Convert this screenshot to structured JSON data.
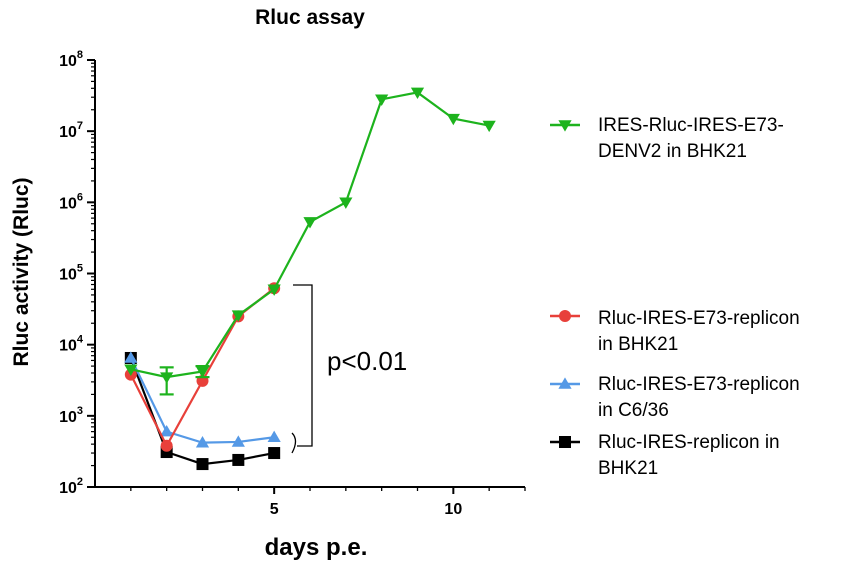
{
  "chart_data": {
    "type": "line",
    "title": "Rluc assay",
    "xlabel": "days p.e.",
    "ylabel": "Rluc activity (Rluc)",
    "yscale": "log",
    "xlim": [
      0,
      12
    ],
    "ylim": [
      100,
      100000000
    ],
    "xticks": [
      5,
      10
    ],
    "xtick_labels": [
      "5",
      "10"
    ],
    "yticks": [
      {
        "base": "10",
        "exp": "2",
        "value": 100
      },
      {
        "base": "10",
        "exp": "3",
        "value": 1000
      },
      {
        "base": "10",
        "exp": "4",
        "value": 10000
      },
      {
        "base": "10",
        "exp": "5",
        "value": 100000
      },
      {
        "base": "10",
        "exp": "6",
        "value": 1000000
      },
      {
        "base": "10",
        "exp": "7",
        "value": 10000000
      },
      {
        "base": "10",
        "exp": "8",
        "value": 100000000
      }
    ],
    "grid": false,
    "legend_position": "right",
    "series": [
      {
        "name_lines": [
          "IRES-Rluc-IRES-E73-",
          "DENV2 in BHK21"
        ],
        "color": "#1db31d",
        "marker": "triangle-down",
        "x": [
          1,
          2,
          3,
          4,
          5,
          6,
          7,
          8,
          9,
          10,
          11
        ],
        "y": [
          4500,
          3500,
          4200,
          26000,
          60000,
          530000,
          1000000,
          28000000,
          35000000,
          15000000,
          12000000
        ],
        "error_low": [
          null,
          2000,
          3500,
          null,
          null,
          null,
          null,
          null,
          null,
          null,
          null
        ],
        "error_high": [
          null,
          4800,
          5000,
          null,
          null,
          null,
          null,
          null,
          null,
          null,
          null
        ]
      },
      {
        "name_lines": [
          "Rluc-IRES-E73-replicon",
          " in BHK21"
        ],
        "color": "#e8403a",
        "marker": "circle",
        "x": [
          1,
          2,
          3,
          4,
          5
        ],
        "y": [
          3800,
          380,
          3100,
          25000,
          62000
        ]
      },
      {
        "name_lines": [
          "Rluc-IRES-E73-replicon",
          " in C6/36"
        ],
        "color": "#5599e6",
        "marker": "triangle-up",
        "x": [
          1,
          2,
          3,
          4,
          5
        ],
        "y": [
          6500,
          600,
          420,
          430,
          500
        ]
      },
      {
        "name_lines": [
          "Rluc-IRES-replicon in",
          "BHK21"
        ],
        "color": "#000000",
        "marker": "square",
        "x": [
          1,
          2,
          3,
          4,
          5
        ],
        "y": [
          6500,
          310,
          210,
          240,
          300
        ]
      }
    ],
    "annotation": {
      "text": "p<0.01"
    }
  }
}
